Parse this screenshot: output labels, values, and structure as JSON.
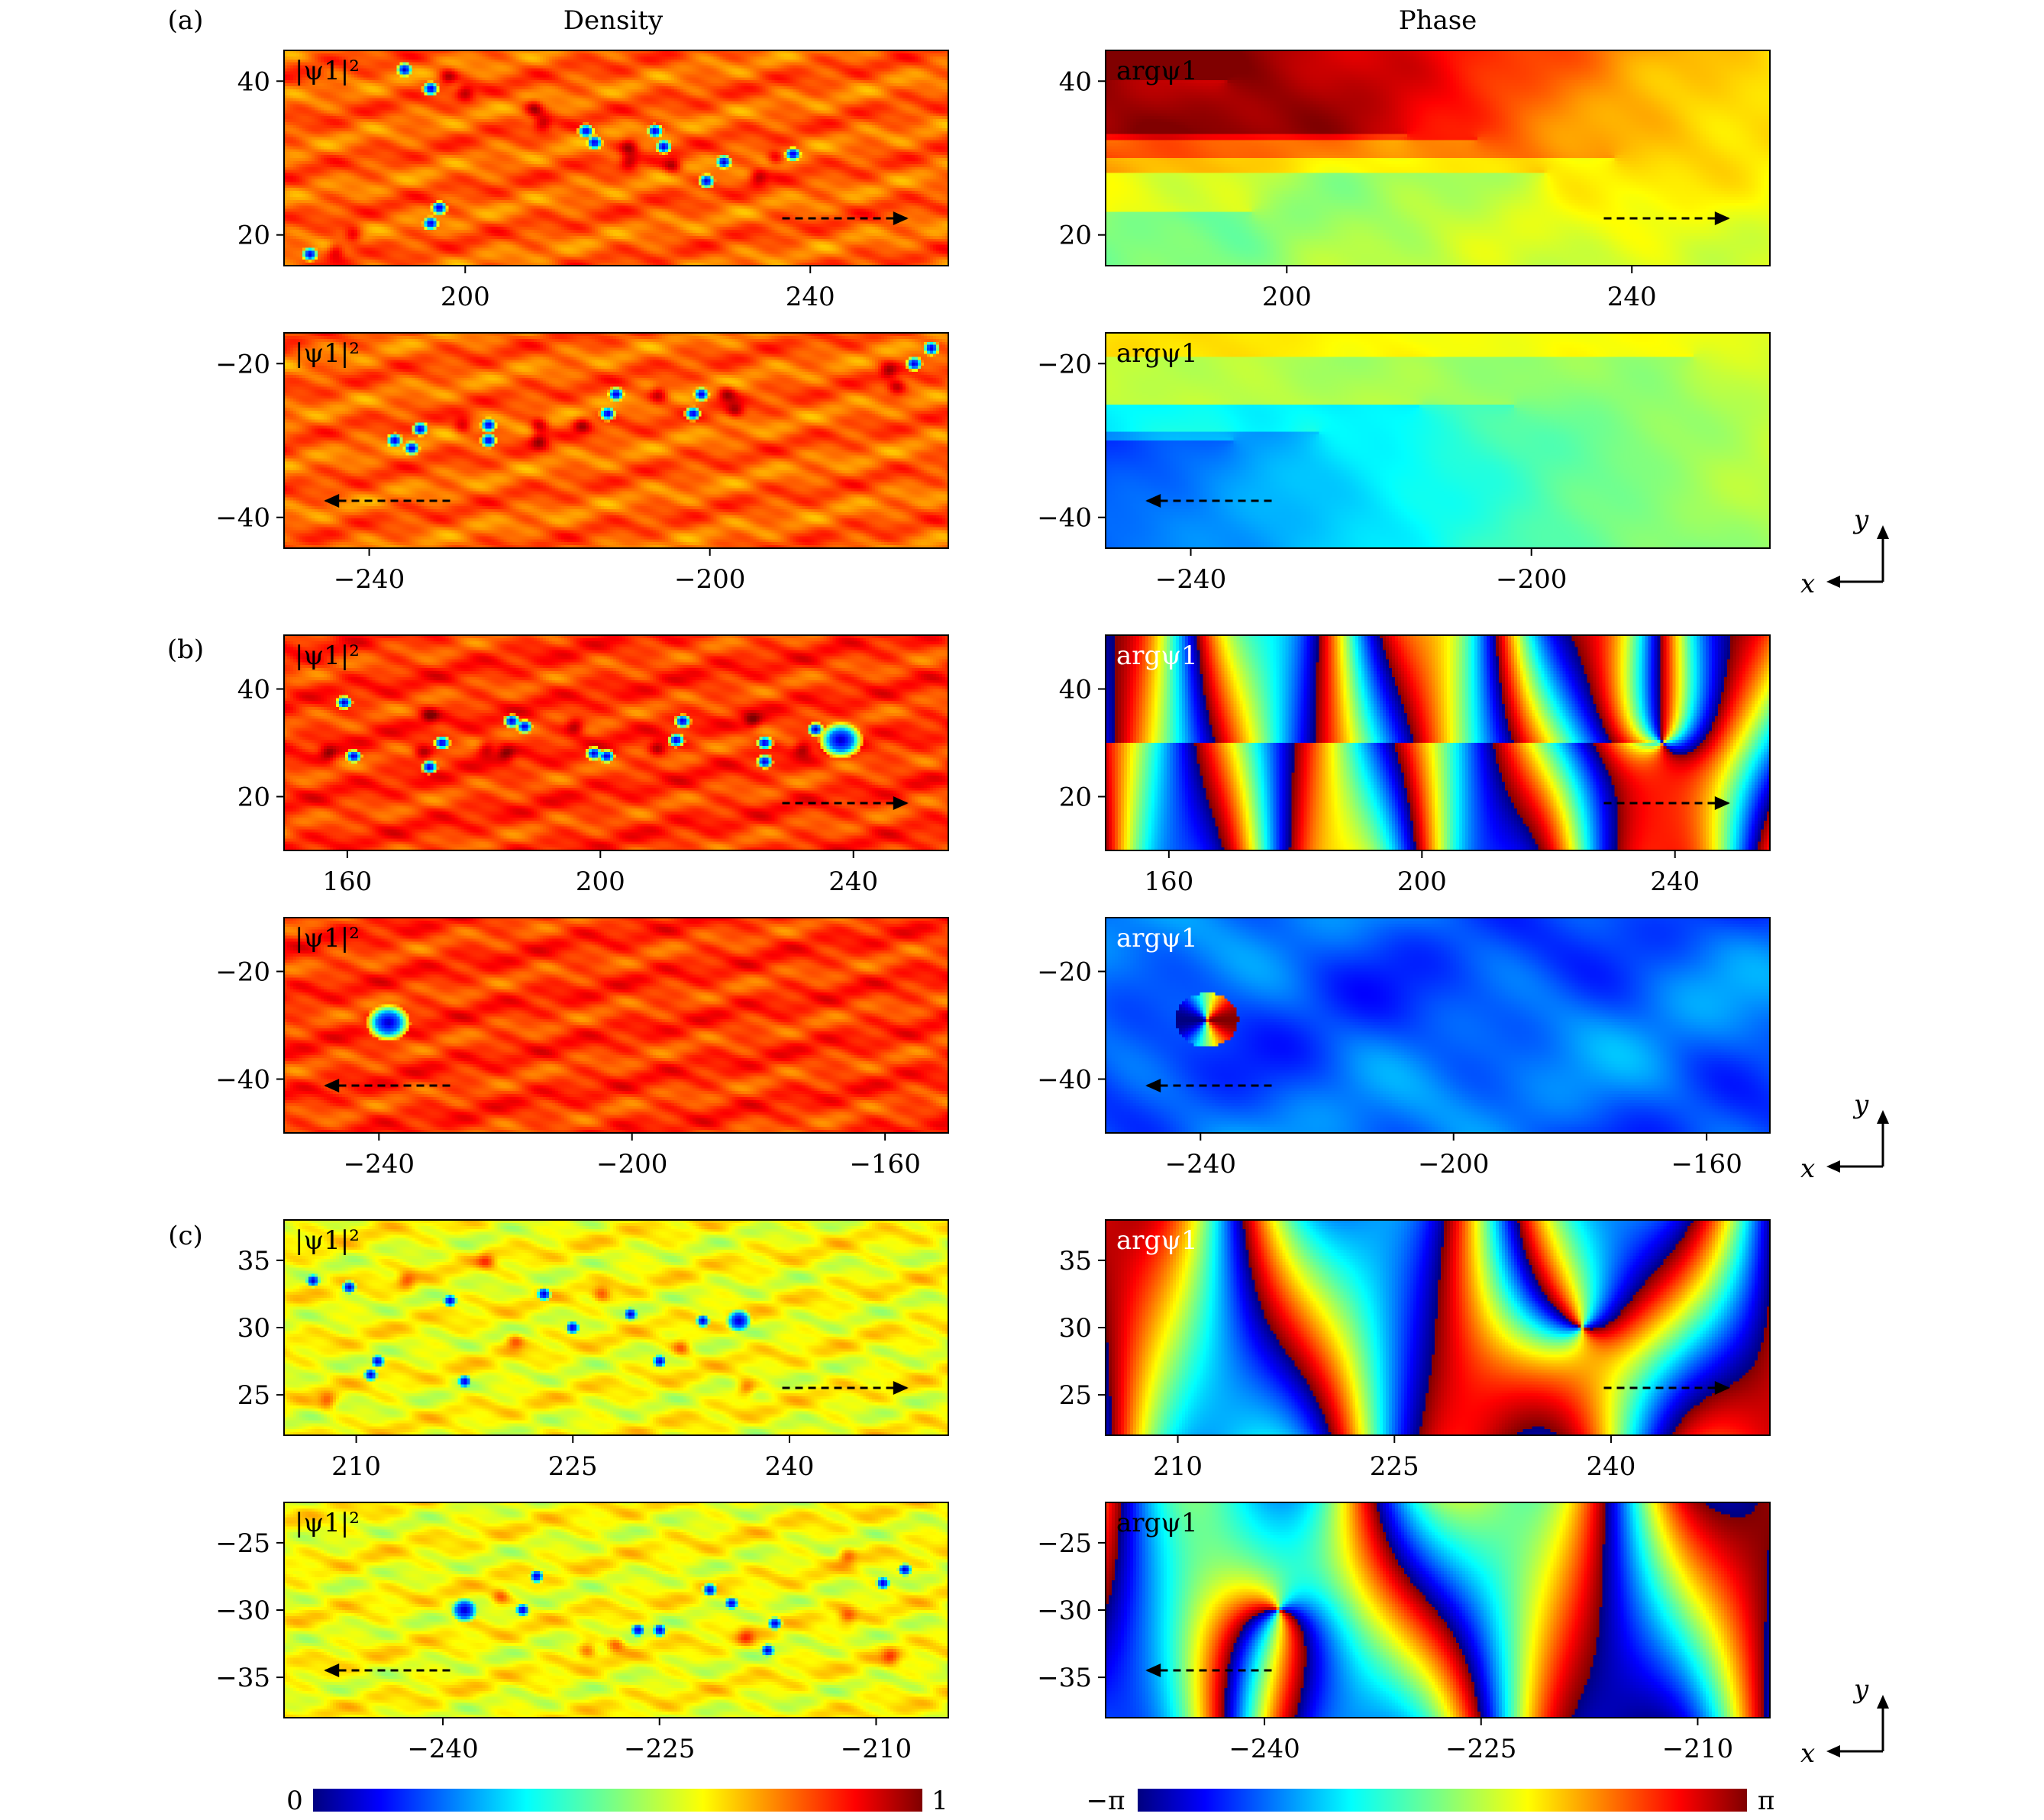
{
  "figure": {
    "column_titles": [
      "Density",
      "Phase"
    ],
    "row_labels": [
      "(a)",
      "(b)",
      "(c)"
    ],
    "density_panel_label": "|ψ1|²",
    "phase_panel_label": "argψ1",
    "axis_indicator": {
      "x": "x",
      "y": "y"
    },
    "colorbars": [
      {
        "name": "density",
        "min_label": "0",
        "max_label": "1",
        "range": [
          0,
          1
        ]
      },
      {
        "name": "phase",
        "min_label": "−π",
        "max_label": "π",
        "range": [
          "-pi",
          "pi"
        ]
      }
    ],
    "colormap": [
      "#00007f",
      "#0000ff",
      "#00bfff",
      "#00ffff",
      "#3fffbf",
      "#7fff7f",
      "#bfff3f",
      "#ffff00",
      "#ffbf00",
      "#ff7f00",
      "#ff0000",
      "#7f0000"
    ]
  },
  "chart_data": [
    {
      "type": "heatmap",
      "row": "(a)",
      "column": "Density",
      "label": "|ψ1|²",
      "xlim": [
        179,
        256
      ],
      "ylim": [
        16,
        44
      ],
      "xticks": [
        200,
        240
      ],
      "yticks": [
        20,
        40
      ],
      "background": 0.78,
      "arrow": "right",
      "vortices": [
        [
          182,
          17.5
        ],
        [
          193,
          41.5
        ],
        [
          196,
          39
        ],
        [
          196,
          21.5
        ],
        [
          197,
          23.5
        ],
        [
          214,
          33.5
        ],
        [
          215,
          32
        ],
        [
          222,
          33.5
        ],
        [
          223,
          31.5
        ],
        [
          228,
          27
        ],
        [
          230,
          29.5
        ],
        [
          238,
          30.5
        ]
      ],
      "peaks": [
        [
          185,
          18
        ],
        [
          187,
          20
        ],
        [
          198,
          40.5
        ],
        [
          200,
          38.5
        ],
        [
          208,
          36.5
        ],
        [
          209,
          34.5
        ],
        [
          219,
          31.5
        ],
        [
          219,
          29.5
        ],
        [
          224,
          29
        ],
        [
          234,
          27.5
        ],
        [
          236,
          30
        ]
      ]
    },
    {
      "type": "heatmap",
      "row": "(a)",
      "column": "Phase",
      "label": "argψ1",
      "xlim": [
        179,
        256
      ],
      "ylim": [
        16,
        44
      ],
      "xticks": [
        200,
        240
      ],
      "yticks": [
        20,
        40
      ],
      "arrow": "right",
      "style": "phase-a",
      "vortices": [
        [
          193,
          40
        ],
        [
          196,
          23
        ],
        [
          214,
          33
        ],
        [
          222,
          32.5
        ],
        [
          230,
          28
        ],
        [
          238,
          30
        ]
      ]
    },
    {
      "type": "heatmap",
      "row": "(a)",
      "column": "Density",
      "label": "|ψ1|²",
      "xlim": [
        -250,
        -172
      ],
      "ylim": [
        -44,
        -16
      ],
      "xticks": [
        -240,
        -200
      ],
      "yticks": [
        -20,
        -40
      ],
      "background": 0.78,
      "arrow": "left",
      "vortices": [
        [
          -237,
          -30
        ],
        [
          -235,
          -31
        ],
        [
          -234,
          -28.5
        ],
        [
          -226,
          -28
        ],
        [
          -226,
          -30
        ],
        [
          -212,
          -26.5
        ],
        [
          -211,
          -24
        ],
        [
          -202,
          -26.5
        ],
        [
          -201,
          -24
        ],
        [
          -176,
          -20
        ],
        [
          -174,
          -18
        ]
      ],
      "peaks": [
        [
          -229,
          -28
        ],
        [
          -220,
          -28
        ],
        [
          -220,
          -30
        ],
        [
          -215,
          -28
        ],
        [
          -206,
          -24
        ],
        [
          -198,
          -24
        ],
        [
          -197,
          -26
        ],
        [
          -179,
          -21
        ],
        [
          -178,
          -23
        ]
      ]
    },
    {
      "type": "heatmap",
      "row": "(a)",
      "column": "Phase",
      "label": "argψ1",
      "xlim": [
        -250,
        -172
      ],
      "ylim": [
        -44,
        -16
      ],
      "xticks": [
        -240,
        -200
      ],
      "yticks": [
        -20,
        -40
      ],
      "arrow": "left",
      "style": "phase-a2",
      "vortices": [
        [
          -235,
          -30
        ],
        [
          -225,
          -29
        ],
        [
          -213,
          -25.5
        ],
        [
          -202,
          -25.5
        ],
        [
          -181,
          -19
        ]
      ]
    },
    {
      "type": "heatmap",
      "row": "(b)",
      "column": "Density",
      "label": "|ψ1|²",
      "xlim": [
        150,
        255
      ],
      "ylim": [
        10,
        50
      ],
      "xticks": [
        160,
        200,
        240
      ],
      "yticks": [
        20,
        40
      ],
      "background": 0.82,
      "arrow": "right",
      "vortices": [
        [
          159.5,
          37.5
        ],
        [
          161,
          27.5
        ],
        [
          173,
          25.5
        ],
        [
          175,
          30
        ],
        [
          186,
          34
        ],
        [
          188,
          33
        ],
        [
          199,
          28
        ],
        [
          201,
          27.5
        ],
        [
          212,
          30.5
        ],
        [
          213,
          34
        ],
        [
          226,
          30
        ],
        [
          226,
          26.5
        ],
        [
          234,
          32.5
        ],
        [
          238,
          30.5,
          1.8
        ]
      ],
      "peaks": [
        [
          157,
          28
        ],
        [
          173,
          35
        ],
        [
          172,
          28
        ],
        [
          182,
          29
        ],
        [
          185,
          28
        ],
        [
          196,
          33
        ],
        [
          209,
          29
        ],
        [
          224,
          34
        ],
        [
          232,
          29
        ]
      ]
    },
    {
      "type": "heatmap",
      "row": "(b)",
      "column": "Phase",
      "label": "argψ1",
      "xlim": [
        150,
        255
      ],
      "ylim": [
        10,
        50
      ],
      "xticks": [
        160,
        200,
        240
      ],
      "yticks": [
        20,
        40
      ],
      "arrow": "right",
      "style": "phase-b",
      "vortices": [
        [
          238,
          30
        ]
      ]
    },
    {
      "type": "heatmap",
      "row": "(b)",
      "column": "Density",
      "label": "|ψ1|²",
      "xlim": [
        -255,
        -150
      ],
      "ylim": [
        -50,
        -10
      ],
      "xticks": [
        -240,
        -200,
        -160
      ],
      "yticks": [
        -20,
        -40
      ],
      "background": 0.82,
      "arrow": "left",
      "vortices": [
        [
          -238.5,
          -29.5,
          1.8
        ]
      ],
      "peaks": []
    },
    {
      "type": "heatmap",
      "row": "(b)",
      "column": "Phase",
      "label": "argψ1",
      "xlim": [
        -255,
        -150
      ],
      "ylim": [
        -50,
        -10
      ],
      "xticks": [
        -240,
        -200,
        -160
      ],
      "yticks": [
        -20,
        -40
      ],
      "arrow": "left",
      "style": "phase-b2",
      "vortices": [
        [
          -239,
          -29
        ]
      ]
    },
    {
      "type": "heatmap",
      "row": "(c)",
      "column": "Density",
      "label": "|ψ1|²",
      "xlim": [
        205,
        251
      ],
      "ylim": [
        22,
        38
      ],
      "xticks": [
        210,
        225,
        240
      ],
      "yticks": [
        25,
        30,
        35
      ],
      "background": 0.62,
      "arrow": "right",
      "vortices": [
        [
          207,
          33.5
        ],
        [
          209.5,
          33
        ],
        [
          211,
          26.5
        ],
        [
          211.5,
          27.5
        ],
        [
          216.5,
          32
        ],
        [
          217.5,
          26
        ],
        [
          223,
          32.5
        ],
        [
          225,
          30
        ],
        [
          229,
          31
        ],
        [
          231,
          27.5
        ],
        [
          234,
          30.5
        ],
        [
          236.5,
          30.5,
          1.2
        ]
      ],
      "peaks": [
        [
          208,
          24.5
        ],
        [
          213.5,
          33.5
        ],
        [
          219,
          35
        ],
        [
          221,
          29
        ],
        [
          227,
          32.5
        ],
        [
          232.5,
          28.5
        ],
        [
          237,
          25.5
        ]
      ]
    },
    {
      "type": "heatmap",
      "row": "(c)",
      "column": "Phase",
      "label": "argψ1",
      "xlim": [
        205,
        251
      ],
      "ylim": [
        22,
        38
      ],
      "xticks": [
        210,
        225,
        240
      ],
      "yticks": [
        25,
        30,
        35
      ],
      "arrow": "right",
      "style": "phase-c",
      "vortices": [
        [
          238,
          30
        ]
      ]
    },
    {
      "type": "heatmap",
      "row": "(c)",
      "column": "Density",
      "label": "|ψ1|²",
      "xlim": [
        -251,
        -205
      ],
      "ylim": [
        -38,
        -22
      ],
      "xticks": [
        -240,
        -225,
        -210
      ],
      "yticks": [
        -25,
        -30,
        -35
      ],
      "background": 0.62,
      "arrow": "left",
      "vortices": [
        [
          -238.5,
          -30,
          1.3
        ],
        [
          -234.5,
          -30
        ],
        [
          -233.5,
          -27.5
        ],
        [
          -226.5,
          -31.5
        ],
        [
          -225,
          -31.5
        ],
        [
          -221.5,
          -28.5
        ],
        [
          -220,
          -29.5
        ],
        [
          -217,
          -31
        ],
        [
          -217.5,
          -33
        ],
        [
          -209.5,
          -28
        ],
        [
          -208,
          -27
        ]
      ],
      "peaks": [
        [
          -236,
          -29
        ],
        [
          -228,
          -32.5
        ],
        [
          -219,
          -32
        ],
        [
          -212,
          -26
        ],
        [
          -209,
          -33.5
        ],
        [
          -212,
          -30.5
        ],
        [
          -230,
          -33
        ]
      ]
    },
    {
      "type": "heatmap",
      "row": "(c)",
      "column": "Phase",
      "label": "argψ1",
      "xlim": [
        -251,
        -205
      ],
      "ylim": [
        -38,
        -22
      ],
      "xticks": [
        -240,
        -225,
        -210
      ],
      "yticks": [
        -25,
        -30,
        -35
      ],
      "arrow": "left",
      "style": "phase-c2",
      "vortices": [
        [
          -239,
          -30
        ]
      ]
    }
  ]
}
